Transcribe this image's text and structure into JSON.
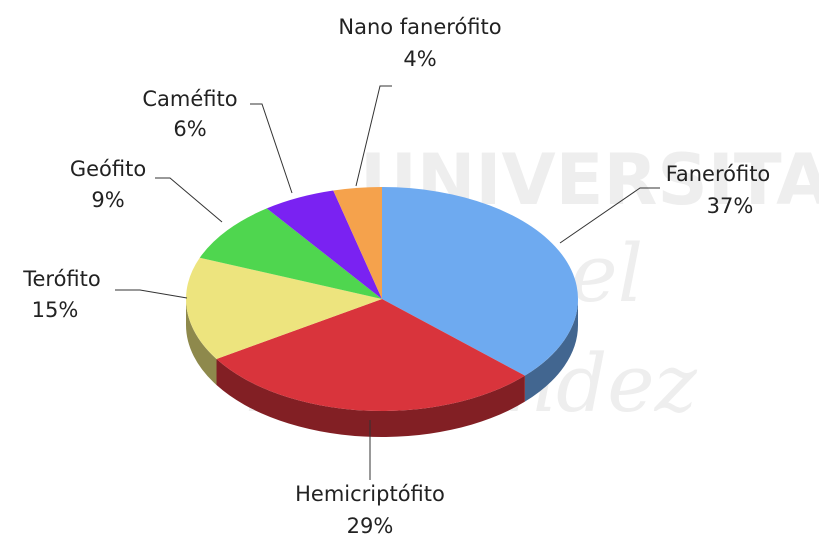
{
  "chart_data": {
    "type": "pie",
    "categories": [
      "Fanerófito",
      "Hemicriptófito",
      "Terófito",
      "Geófito",
      "Caméfito",
      "Nano fanerófito"
    ],
    "values": [
      37,
      29,
      15,
      9,
      6,
      4
    ],
    "value_labels": [
      "37%",
      "29%",
      "15%",
      "9%",
      "6%",
      "4%"
    ],
    "colors": [
      "#6eaaf0",
      "#d9343c",
      "#ede47e",
      "#4fd64f",
      "#7a22f2",
      "#f5a24c"
    ],
    "watermark": [
      "UNIVERSITAS",
      "Miguel",
      "Hernández"
    ]
  }
}
